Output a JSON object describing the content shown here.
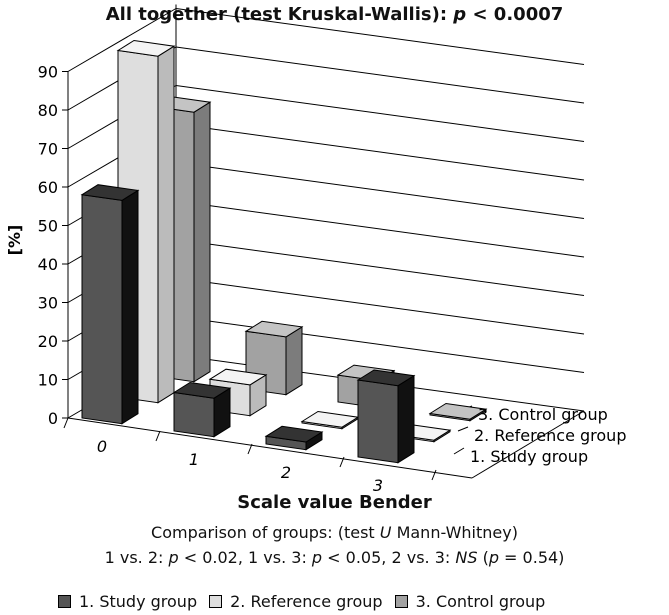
{
  "title_parts": {
    "pre": "All together (test Kruskal-Wallis): ",
    "p": "p",
    "rest": " < 0.0007"
  },
  "xlabel": "Scale value Bender",
  "comparison": {
    "line1": {
      "pre": "Comparison of groups: (test ",
      "u": "U",
      "post": " Mann-Whitney)"
    },
    "line2": {
      "a": "1 vs. 2: ",
      "p1": "p",
      "b": " < 0.02, 1 vs. 3: ",
      "p2": "p",
      "c": " < 0.05, 2 vs. 3: ",
      "ns": "NS",
      "d": " (",
      "p3": "p",
      "e": " = 0.54)"
    }
  },
  "chart_data": {
    "type": "bar",
    "projection": "3d",
    "title": "All together (test Kruskal-Wallis): p < 0.0007",
    "xlabel": "Scale value Bender",
    "ylabel": "[%]",
    "ylim": [
      0,
      90
    ],
    "yticks": [
      0,
      10,
      20,
      30,
      40,
      50,
      60,
      70,
      80,
      90
    ],
    "grid": true,
    "legend_position": "bottom",
    "categories": [
      "0",
      "1",
      "2",
      "3"
    ],
    "series": [
      {
        "name": "1. Study group",
        "values": [
          58,
          10,
          2,
          20
        ],
        "color": "#555555",
        "side": "#111111",
        "top": "#333333"
      },
      {
        "name": "2. Reference group",
        "values": [
          90,
          8,
          0,
          0
        ],
        "color": "#dedede",
        "side": "#bbbbbb",
        "top": "#f4f4f4"
      },
      {
        "name": "3. Control group",
        "values": [
          70,
          15,
          7,
          0
        ],
        "color": "#a2a2a2",
        "side": "#7c7c7c",
        "top": "#c4c4c4"
      }
    ]
  }
}
